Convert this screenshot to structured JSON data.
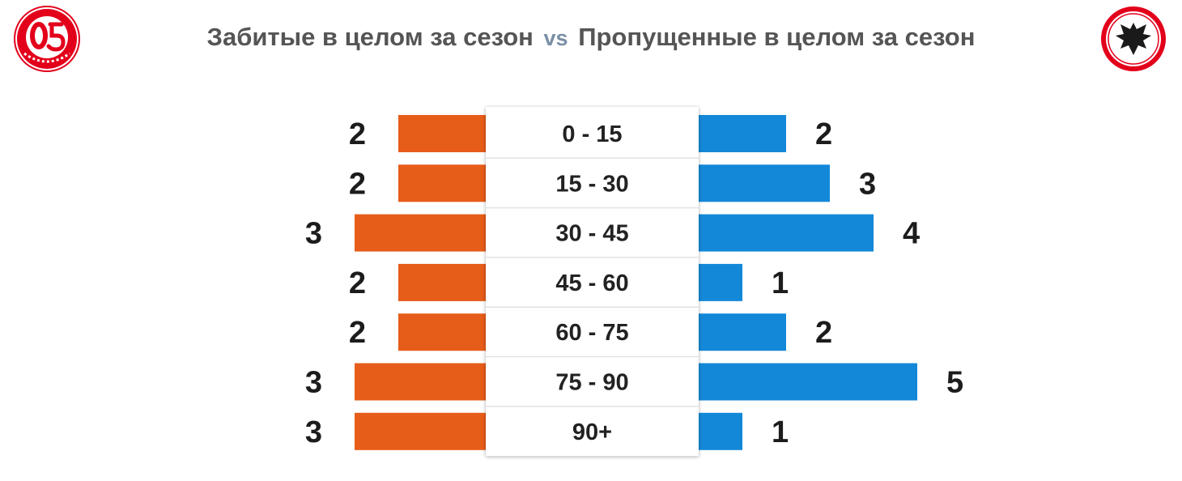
{
  "header": {
    "title_left": "Забитые в целом за сезон",
    "vs": "vs",
    "title_right": "Пропущенные в целом за сезон",
    "logo_left_icon": "mainz-05-crest-icon",
    "logo_right_icon": "eintracht-frankfurt-eagle-crest-icon"
  },
  "colors": {
    "left_bar": "#e65c19",
    "right_bar": "#1488d8",
    "logo_red": "#e3001b"
  },
  "chart_data": {
    "type": "bar",
    "orientation": "diverging-horizontal",
    "categories": [
      "0 - 15",
      "15 - 30",
      "30 - 45",
      "45 - 60",
      "60 - 75",
      "75 - 90",
      "90+"
    ],
    "series": [
      {
        "name": "Забитые в целом за сезон",
        "side": "left",
        "values": [
          2,
          2,
          3,
          2,
          2,
          3,
          3
        ]
      },
      {
        "name": "Пропущенные в целом за сезон",
        "side": "right",
        "values": [
          2,
          3,
          4,
          1,
          2,
          5,
          1
        ]
      }
    ],
    "value_labels": {
      "left": [
        "2",
        "2",
        "3",
        "2",
        "2",
        "3",
        "3"
      ],
      "right": [
        "2",
        "3",
        "4",
        "1",
        "2",
        "5",
        "1"
      ]
    },
    "legend": "none",
    "grid": false
  }
}
